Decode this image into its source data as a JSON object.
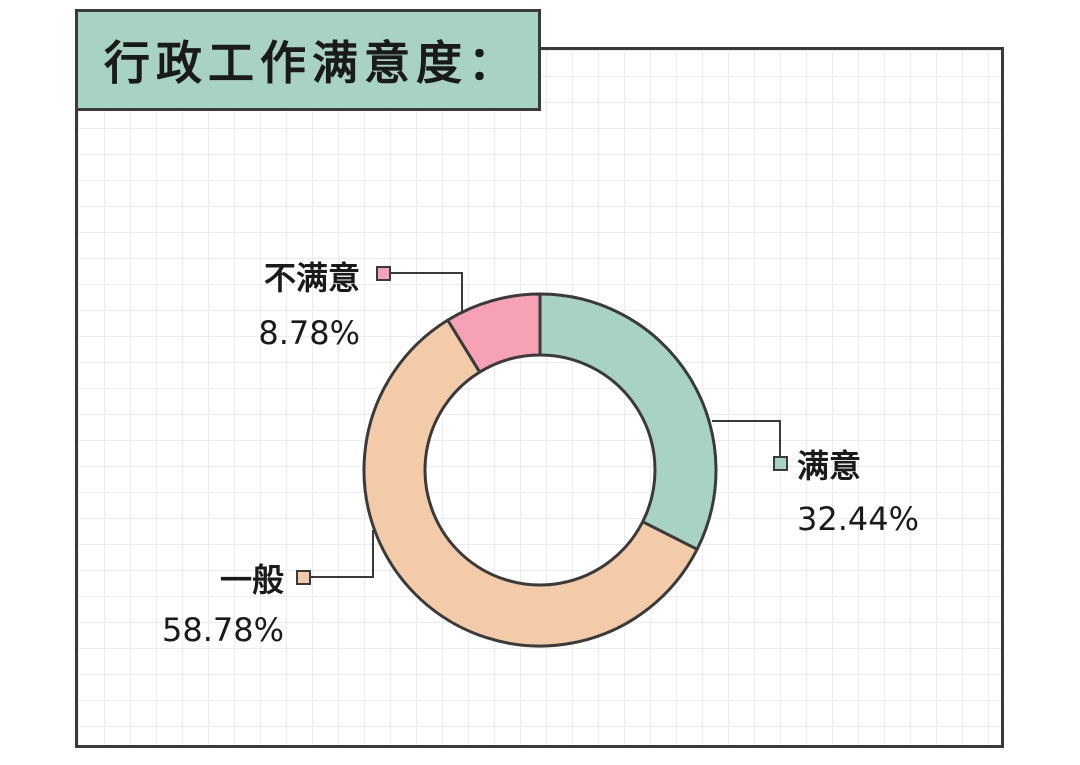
{
  "title": "行政工作满意度：",
  "chart_data": {
    "type": "pie",
    "donut": true,
    "title": "行政工作满意度：",
    "slices": [
      {
        "name": "满意",
        "percent_label": "32.44%",
        "value": 32.44,
        "color": "#a8d2c1"
      },
      {
        "name": "一般",
        "percent_label": "58.78%",
        "value": 58.78,
        "color": "#f3cba9"
      },
      {
        "name": "不满意",
        "percent_label": "8.78%",
        "value": 8.78,
        "color": "#f6a2b4"
      }
    ]
  }
}
